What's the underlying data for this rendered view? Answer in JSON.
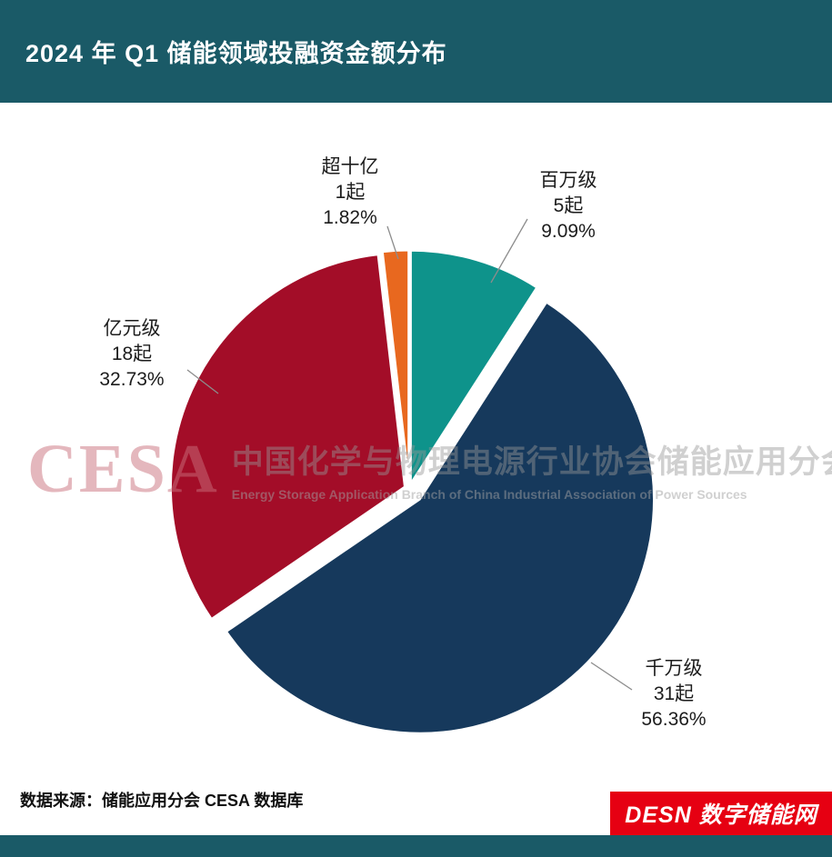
{
  "header": {
    "title": "2024 年 Q1 储能领域投融资金额分布"
  },
  "chart_data": {
    "type": "pie",
    "title": "2024 年 Q1 储能领域投融资金额分布",
    "legend_position": "none",
    "slices": [
      {
        "label": "百万级",
        "count": 5,
        "count_label": "5起",
        "percent": 9.09,
        "percent_label": "9.09%",
        "color": "#0e938b"
      },
      {
        "label": "千万级",
        "count": 31,
        "count_label": "31起",
        "percent": 56.36,
        "percent_label": "56.36%",
        "color": "#16395c"
      },
      {
        "label": "亿元级",
        "count": 18,
        "count_label": "18起",
        "percent": 32.73,
        "percent_label": "32.73%",
        "color": "#a30d28"
      },
      {
        "label": "超十亿",
        "count": 1,
        "count_label": "1起",
        "percent": 1.82,
        "percent_label": "1.82%",
        "color": "#e8681f"
      }
    ]
  },
  "watermark": {
    "logo": "CESA",
    "line_cn": "中国化学与物理电源行业协会储能应用分会",
    "line_en": "Energy Storage Application Branch of China Industrial Association of Power Sources"
  },
  "footer": {
    "source": "数据来源：储能应用分会 CESA 数据库",
    "brand": "DESN 数字储能网"
  }
}
